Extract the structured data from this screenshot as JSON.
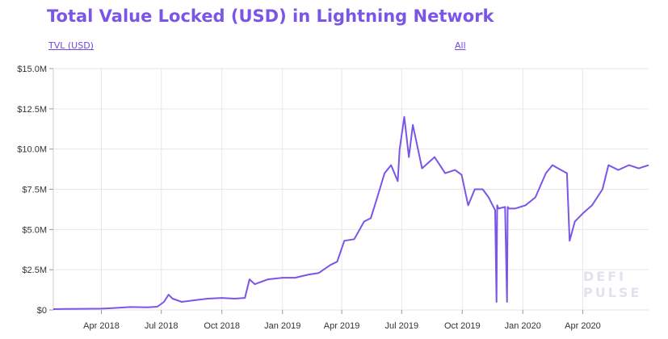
{
  "header": {
    "title": "Total Value Locked (USD) in Lightning Network",
    "metric_link": "TVL (USD)",
    "range_link": "All"
  },
  "watermark": {
    "line1": "DEFI",
    "line2": "PULSE"
  },
  "colors": {
    "accent": "#7b55e6",
    "line": "#7b55e6",
    "grid": "#e6e6e6"
  },
  "chart_data": {
    "type": "line",
    "title": "Total Value Locked (USD) in Lightning Network",
    "xlabel": "",
    "ylabel": "",
    "ylim": [
      0,
      15000000
    ],
    "xlim": [
      "2018-01-18",
      "2020-07-10"
    ],
    "grid": true,
    "y_ticks": [
      0,
      2500000,
      5000000,
      7500000,
      10000000,
      12500000,
      15000000
    ],
    "y_tick_labels": [
      "$0",
      "$2.5M",
      "$5.0M",
      "$7.5M",
      "$10.0M",
      "$12.5M",
      "$15.0M"
    ],
    "x_ticks": [
      "2018-04-01",
      "2018-07-01",
      "2018-10-01",
      "2019-01-01",
      "2019-04-01",
      "2019-07-01",
      "2019-10-01",
      "2020-01-01",
      "2020-04-01"
    ],
    "x_tick_labels": [
      "Apr 2018",
      "Jul 2018",
      "Oct 2018",
      "Jan 2019",
      "Apr 2019",
      "Jul 2019",
      "Oct 2019",
      "Jan 2020",
      "Apr 2020"
    ],
    "series": [
      {
        "x": [
          "2018-01-18",
          "2018-02-05",
          "2018-03-01",
          "2018-04-01",
          "2018-04-20",
          "2018-05-15",
          "2018-06-10",
          "2018-06-25",
          "2018-07-05",
          "2018-07-12",
          "2018-07-18",
          "2018-08-01",
          "2018-08-20",
          "2018-09-10",
          "2018-10-01",
          "2018-10-20",
          "2018-11-05",
          "2018-11-12",
          "2018-11-20",
          "2018-12-10",
          "2019-01-01",
          "2019-01-20",
          "2019-02-10",
          "2019-02-25",
          "2019-03-15",
          "2019-03-25",
          "2019-04-05",
          "2019-04-20",
          "2019-05-05",
          "2019-05-15",
          "2019-05-25",
          "2019-06-05",
          "2019-06-15",
          "2019-06-25",
          "2019-06-28",
          "2019-07-05",
          "2019-07-12",
          "2019-07-18",
          "2019-08-01",
          "2019-08-20",
          "2019-09-05",
          "2019-09-20",
          "2019-09-30",
          "2019-10-10",
          "2019-10-20",
          "2019-11-01",
          "2019-11-10",
          "2019-11-20",
          "2019-11-22",
          "2019-11-23",
          "2019-11-25",
          "2019-12-05",
          "2019-12-08",
          "2019-12-09",
          "2019-12-11",
          "2019-12-20",
          "2020-01-05",
          "2020-01-20",
          "2020-02-05",
          "2020-02-15",
          "2020-02-28",
          "2020-03-08",
          "2020-03-12",
          "2020-03-20",
          "2020-04-01",
          "2020-04-15",
          "2020-05-01",
          "2020-05-10",
          "2020-05-25",
          "2020-06-10",
          "2020-06-25",
          "2020-07-10"
        ],
        "values": [
          50000,
          60000,
          70000,
          80000,
          120000,
          180000,
          160000,
          200000,
          500000,
          950000,
          700000,
          500000,
          600000,
          700000,
          750000,
          700000,
          750000,
          1900000,
          1600000,
          1900000,
          2000000,
          2000000,
          2200000,
          2300000,
          2800000,
          3000000,
          4300000,
          4400000,
          5500000,
          5700000,
          7000000,
          8500000,
          9000000,
          8000000,
          10000000,
          12000000,
          9500000,
          11500000,
          8800000,
          9500000,
          8500000,
          8700000,
          8400000,
          6500000,
          7500000,
          7500000,
          7000000,
          6200000,
          500000,
          6500000,
          6300000,
          6400000,
          500000,
          6400000,
          6300000,
          6300000,
          6500000,
          7000000,
          8500000,
          9000000,
          8700000,
          8500000,
          4300000,
          5500000,
          6000000,
          6500000,
          7500000,
          9000000,
          8700000,
          9000000,
          8800000,
          9000000
        ]
      }
    ]
  }
}
